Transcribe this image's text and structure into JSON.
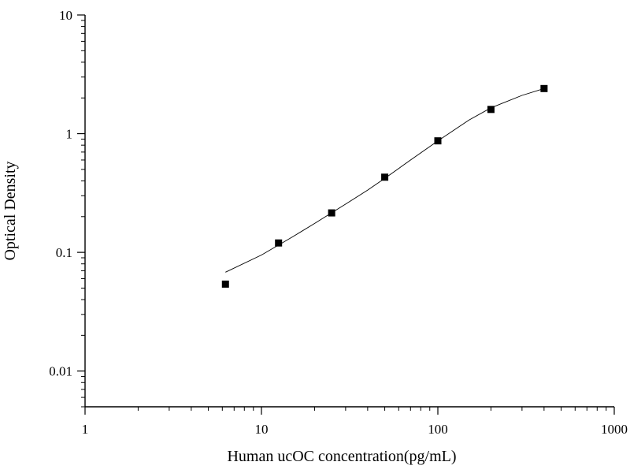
{
  "chart_data": {
    "type": "scatter",
    "title": "",
    "xlabel": "Human ucOC concentration(pg/mL)",
    "ylabel": "Optical Density",
    "x_scale": "log",
    "y_scale": "log",
    "xlim": [
      1,
      1000
    ],
    "ylim": [
      0.005,
      10
    ],
    "x_ticks": [
      1,
      10,
      100,
      1000
    ],
    "x_tick_labels": [
      "1",
      "10",
      "100",
      "1000"
    ],
    "y_ticks": [
      0.01,
      0.1,
      1,
      10
    ],
    "y_tick_labels": [
      "0.01",
      "0.1",
      "1",
      "10"
    ],
    "grid": false,
    "legend": "none",
    "series": [
      {
        "x": [
          6.25,
          12.5,
          25,
          50,
          100,
          200,
          400
        ],
        "y": [
          0.054,
          0.12,
          0.215,
          0.43,
          0.87,
          1.6,
          2.4
        ],
        "marker": "square",
        "color": "#000000"
      }
    ],
    "fit_curve": {
      "x": [
        6.25,
        10,
        15,
        20,
        30,
        40,
        50,
        70,
        100,
        150,
        200,
        300,
        400
      ],
      "y": [
        0.068,
        0.095,
        0.135,
        0.175,
        0.255,
        0.335,
        0.42,
        0.6,
        0.87,
        1.3,
        1.65,
        2.1,
        2.4
      ],
      "color": "#000000"
    }
  }
}
